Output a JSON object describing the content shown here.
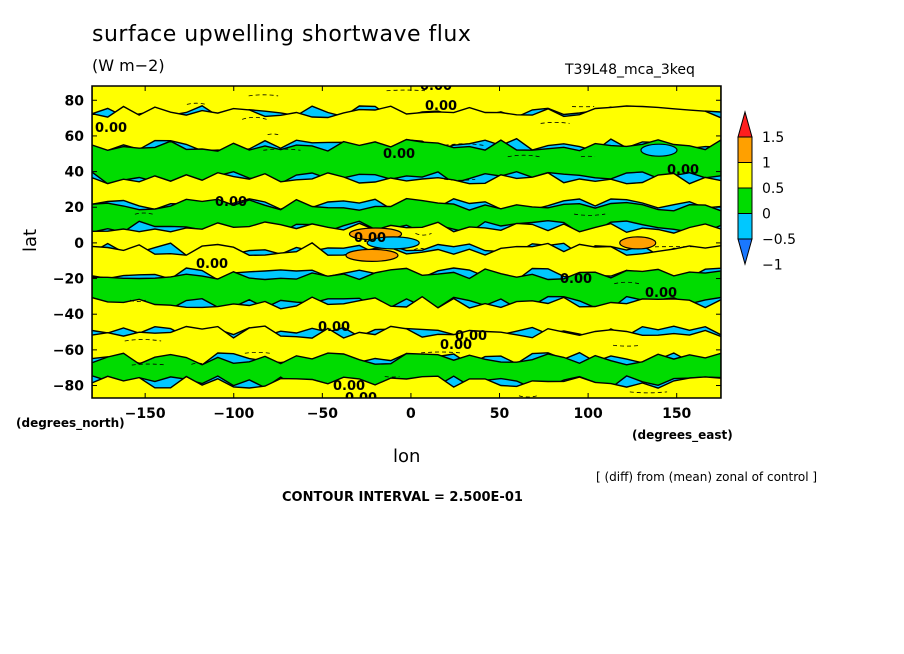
{
  "header": {
    "title": "surface upwelling shortwave flux",
    "units": "(W m−2)",
    "experiment": "T39L48_mca_3keq"
  },
  "axes": {
    "x_label": "lon",
    "y_label": "lat",
    "x_units": "(degrees_east)",
    "y_units": "(degrees_north)"
  },
  "footer": {
    "note": "[ (diff) from (mean) zonal of control ]",
    "contour_interval": "CONTOUR INTERVAL = 2.500E-01"
  },
  "chart_data": {
    "type": "heatmap",
    "title": "surface upwelling shortwave flux",
    "units": "(W m−2)",
    "xlabel": "lon",
    "ylabel": "lat",
    "xlim": [
      -180,
      175
    ],
    "ylim": [
      -87,
      88
    ],
    "x_ticks": [
      -150,
      -100,
      -50,
      0,
      50,
      100,
      150
    ],
    "y_ticks": [
      80,
      60,
      40,
      20,
      0,
      -20,
      -40,
      -60,
      -80
    ],
    "colorbar": {
      "levels": [
        -1,
        -0.5,
        0,
        0.5,
        1,
        1.5
      ],
      "labels": [
        "−1",
        "−0.5",
        "0",
        "0.5",
        "1",
        "1.5"
      ],
      "colors": [
        "#1a78ff",
        "#00c8ff",
        "#00dc00",
        "#ffff00",
        "#ffa000",
        "#ff1e1e"
      ]
    },
    "contour_interval": 0.25,
    "contour_label": "0.00",
    "field": [
      {
        "lat": 82,
        "value": 0.05
      },
      {
        "lat": 65,
        "value": 0.1
      },
      {
        "lat": 45,
        "value": -0.05
      },
      {
        "lat": 28,
        "value": 0.05
      },
      {
        "lat": 15,
        "value": -0.15
      },
      {
        "lat": 3,
        "value": 0.1
      },
      {
        "lat": -10,
        "value": 0.05
      },
      {
        "lat": -25,
        "value": -0.1
      },
      {
        "lat": -42,
        "value": 0.05
      },
      {
        "lat": -58,
        "value": 0.05
      },
      {
        "lat": -72,
        "value": -0.15
      },
      {
        "lat": -84,
        "value": 0.05
      }
    ],
    "features": [
      {
        "lon": -20,
        "lat": 5,
        "value": 0.75
      },
      {
        "lon": -22,
        "lat": -7,
        "value": 0.75
      },
      {
        "lon": 128,
        "lat": 0,
        "value": 0.6
      },
      {
        "lon": -10,
        "lat": 0,
        "value": -0.7
      },
      {
        "lon": 140,
        "lat": 52,
        "value": -0.6
      }
    ]
  }
}
